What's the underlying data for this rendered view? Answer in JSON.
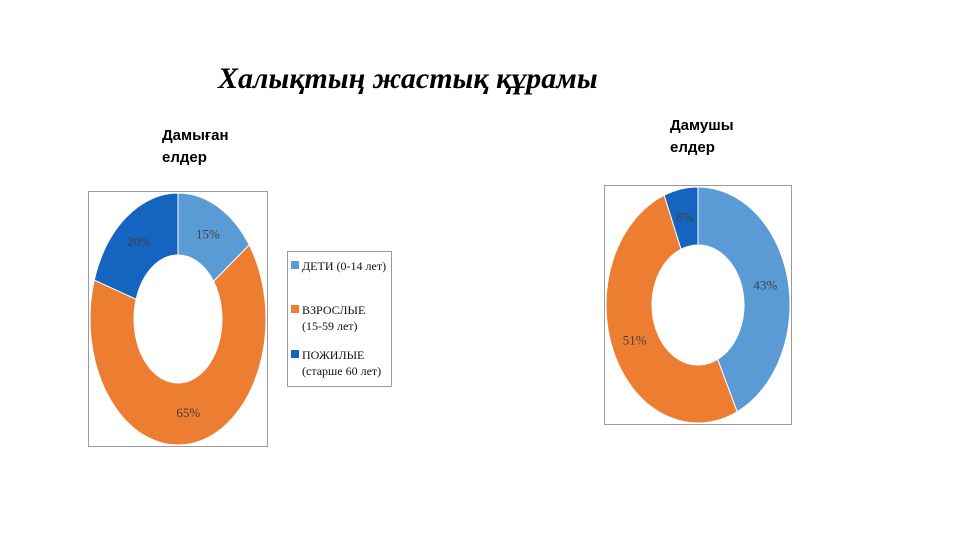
{
  "slide": {
    "title": "Халықтың жастық құрамы"
  },
  "legend": {
    "items": [
      {
        "lines": [
          "ДЕТИ (0-14 лет)"
        ],
        "color": "#5b9bd5"
      },
      {
        "lines": [
          "ВЗРОСЛЫЕ",
          "(15-59 лет)"
        ],
        "color": "#ed7d31"
      },
      {
        "lines": [
          "ПОЖИЛЫЕ",
          "(старше 60 лет)"
        ],
        "color": "#1565c0"
      }
    ]
  },
  "chart_data": [
    {
      "type": "pie",
      "variant": "donut",
      "title_lines": [
        "Дамыған",
        "елдер"
      ],
      "categories": [
        "ДЕТИ (0-14 лет)",
        "ВЗРОСЛЫЕ (15-59 лет)",
        "ПОЖИЛЫЕ (старше 60 лет)"
      ],
      "values": [
        15,
        65,
        20
      ],
      "labels": [
        "15%",
        "65%",
        "20%"
      ],
      "colors": [
        "#5b9bd5",
        "#ed7d31",
        "#1565c0"
      ],
      "legend": "right"
    },
    {
      "type": "pie",
      "variant": "donut",
      "title_lines": [
        "Дамушы",
        "елдер"
      ],
      "categories": [
        "ДЕТИ (0-14 лет)",
        "ВЗРОСЛЫЕ (15-59 лет)",
        "ПОЖИЛЫЕ (старше 60 лет)"
      ],
      "values": [
        43,
        51,
        6
      ],
      "labels": [
        "43%",
        "51%",
        "6%"
      ],
      "colors": [
        "#5b9bd5",
        "#ed7d31",
        "#1565c0"
      ],
      "legend": "none"
    }
  ]
}
